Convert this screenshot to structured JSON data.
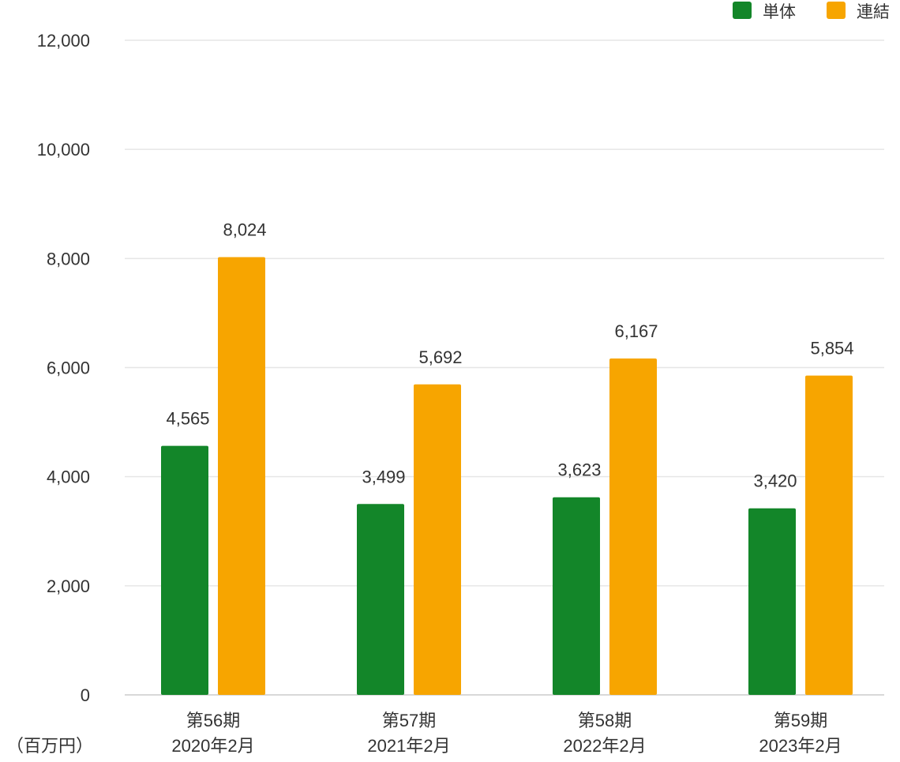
{
  "chart_data": {
    "type": "bar",
    "categories": [
      [
        "第56期",
        "2020年2月"
      ],
      [
        "第57期",
        "2021年2月"
      ],
      [
        "第58期",
        "2022年2月"
      ],
      [
        "第59期",
        "2023年2月"
      ]
    ],
    "series": [
      {
        "name": "単体",
        "color": "#138629",
        "values": [
          4565,
          3499,
          3623,
          3420
        ],
        "labels": [
          "4,565",
          "3,499",
          "3,623",
          "3,420"
        ]
      },
      {
        "name": "連結",
        "color": "#f7a500",
        "values": [
          8024,
          5692,
          6167,
          5854
        ],
        "labels": [
          "8,024",
          "5,692",
          "6,167",
          "5,854"
        ]
      }
    ],
    "ylim": [
      0,
      12000
    ],
    "yticks": [
      0,
      2000,
      4000,
      6000,
      8000,
      10000,
      12000
    ],
    "ytick_labels": [
      "0",
      "2,000",
      "4,000",
      "6,000",
      "8,000",
      "10,000",
      "12,000"
    ],
    "unit_label": "（百万円）",
    "legend_position": "top-right",
    "grid": true
  }
}
